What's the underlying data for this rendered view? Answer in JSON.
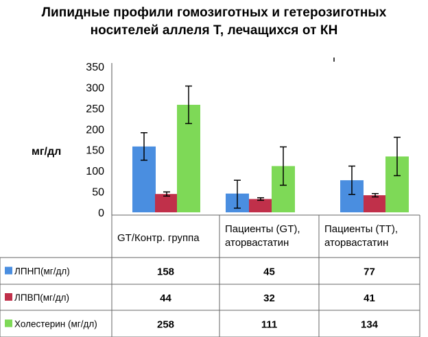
{
  "chart_data": {
    "type": "bar",
    "title": [
      "Липидные профили гомозиготных и гетерозиготных",
      "носителей аллеля Т, лечащихся от КН"
    ],
    "ylabel": "мг/дл",
    "xlabel": "",
    "ylim": [
      0,
      350
    ],
    "yticks": [
      "0",
      "50",
      "100",
      "150",
      "200",
      "250",
      "300",
      "350"
    ],
    "grid": false,
    "legend": "table-left",
    "categories": [
      [
        "GT/Контр. группа"
      ],
      [
        "Пациенты (GT),",
        "аторвастатин"
      ],
      [
        "Пациенты (TT),",
        "аторвастатин"
      ]
    ],
    "series": [
      {
        "name": "ЛПНП(мг/дл)",
        "color": "#4a8ee0",
        "values": [
          158,
          45,
          77
        ],
        "labels": [
          "158",
          "45",
          "77"
        ],
        "error_low": [
          125,
          10,
          43
        ],
        "error_high": [
          191,
          77,
          111
        ]
      },
      {
        "name": "ЛПВП(мг/дл)",
        "color": "#c0304a",
        "values": [
          44,
          32,
          41
        ],
        "labels": [
          "44",
          "32",
          "41"
        ],
        "error_low": [
          39,
          29,
          37
        ],
        "error_high": [
          49,
          35,
          45
        ]
      },
      {
        "name": "Холестерин (мг/дл)",
        "color": "#7ed957",
        "values": [
          258,
          111,
          134
        ],
        "labels": [
          "258",
          "111",
          "134"
        ],
        "error_low": [
          213,
          65,
          88
        ],
        "error_high": [
          303,
          157,
          180
        ]
      }
    ]
  }
}
